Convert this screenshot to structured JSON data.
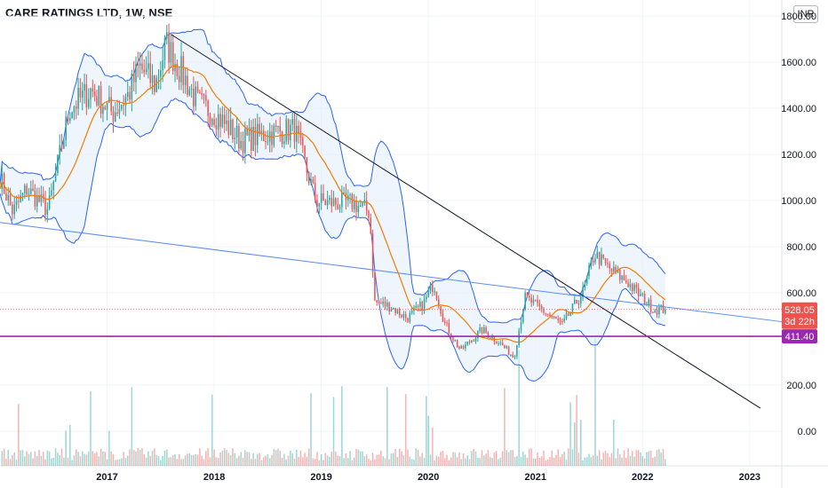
{
  "header": {
    "title": "CARE RATINGS LTD, 1W, NSE",
    "currency": "INR"
  },
  "colors": {
    "up": "#26a69a",
    "down": "#ef5350",
    "band": "#2962ff",
    "band_fill": "#e3effb",
    "ma": "#f57c00",
    "trend_black": "#131722",
    "trend_blue": "#5b8def",
    "support": "#9c27b0",
    "price_tag": "#ef5350"
  },
  "chart_data": {
    "type": "candlestick",
    "x_range": [
      2016.0,
      2023.3
    ],
    "y_range": [
      -150,
      1870
    ],
    "y_ticks": [
      0,
      200,
      400,
      600,
      800,
      1000,
      1200,
      1400,
      1600,
      1800
    ],
    "y_tick_labels": [
      "0.00",
      "200.00",
      "400.00",
      "600.00",
      "800.00",
      "1000.00",
      "1200.00",
      "1400.00",
      "1600.00",
      "1800.00"
    ],
    "x_ticks": [
      2017,
      2018,
      2019,
      2020,
      2021,
      2022,
      2023
    ],
    "x_tick_labels": [
      "2017",
      "2018",
      "2019",
      "2020",
      "2021",
      "2022",
      "2023"
    ],
    "grid": true,
    "price_anchors": [
      [
        2016.0,
        1100
      ],
      [
        2016.12,
        950
      ],
      [
        2016.25,
        1050
      ],
      [
        2016.45,
        960
      ],
      [
        2016.65,
        1400
      ],
      [
        2016.85,
        1480
      ],
      [
        2017.05,
        1380
      ],
      [
        2017.2,
        1460
      ],
      [
        2017.3,
        1580
      ],
      [
        2017.45,
        1500
      ],
      [
        2017.55,
        1680
      ],
      [
        2017.7,
        1550
      ],
      [
        2017.85,
        1420
      ],
      [
        2018.0,
        1380
      ],
      [
        2018.25,
        1260
      ],
      [
        2018.5,
        1290
      ],
      [
        2018.75,
        1310
      ],
      [
        2018.82,
        1200
      ],
      [
        2018.95,
        1000
      ],
      [
        2019.1,
        990
      ],
      [
        2019.3,
        990
      ],
      [
        2019.45,
        950
      ],
      [
        2019.5,
        560
      ],
      [
        2019.65,
        540
      ],
      [
        2019.8,
        490
      ],
      [
        2019.95,
        550
      ],
      [
        2020.05,
        640
      ],
      [
        2020.15,
        470
      ],
      [
        2020.3,
        350
      ],
      [
        2020.5,
        440
      ],
      [
        2020.65,
        390
      ],
      [
        2020.8,
        320
      ],
      [
        2020.9,
        580
      ],
      [
        2021.05,
        530
      ],
      [
        2021.25,
        460
      ],
      [
        2021.45,
        610
      ],
      [
        2021.55,
        770
      ],
      [
        2021.7,
        700
      ],
      [
        2021.85,
        650
      ],
      [
        2021.95,
        600
      ],
      [
        2022.1,
        530
      ],
      [
        2022.22,
        528
      ]
    ],
    "last_price": 528.05,
    "last_price_label": "528.05",
    "countdown_label": "3d 22h",
    "support_level": 411.4,
    "support_label": "411.40",
    "trendline_black": [
      [
        2017.6,
        1720
      ],
      [
        2023.1,
        100
      ]
    ],
    "trendline_blue": [
      [
        2016.0,
        905
      ],
      [
        2023.3,
        475
      ]
    ],
    "volume_spikes": [
      [
        2020.0,
        340
      ],
      [
        2020.85,
        290
      ],
      [
        2021.55,
        320
      ]
    ]
  }
}
